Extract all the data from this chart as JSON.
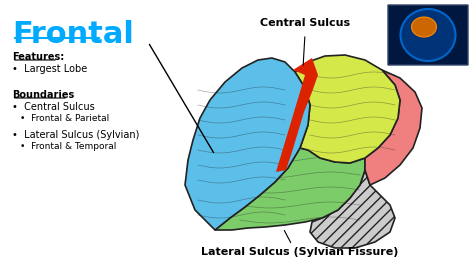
{
  "background_color": "#ffffff",
  "title": "Frontal",
  "title_color": "#00aaff",
  "title_fontsize": 22,
  "features_label": "Features:",
  "boundaries_label": "Boundaries",
  "central_sulcus_label": "Central Sulcus",
  "lateral_sulcus_label": "Lateral Sulcus (Sylvian Fissure)",
  "frontal_color": "#5bbfea",
  "parietal_color": "#d4e84a",
  "temporal_color": "#7dcc6a",
  "occipital_color": "#f08080",
  "cerebellum_color": "#cccccc",
  "sulcus_color": "#dd2200",
  "outline_color": "#222222",
  "text_color": "#000000",
  "label_fontsize": 8,
  "body_fontsize": 7
}
